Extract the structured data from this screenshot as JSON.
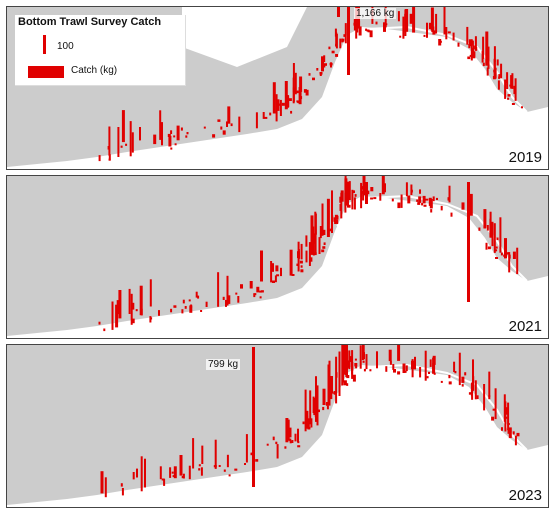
{
  "legend": {
    "title": "Bottom Trawl Survey Catch",
    "scale_value": "100",
    "swatch_label": "Catch (kg)"
  },
  "colors": {
    "catch": "#e00000",
    "land": "#cccccc",
    "water": "#ffffff"
  },
  "panels": [
    {
      "year": "2019",
      "max_label": "1,166 kg"
    },
    {
      "year": "2021",
      "max_label": ""
    },
    {
      "year": "2023",
      "max_label": "799 kg"
    }
  ]
}
